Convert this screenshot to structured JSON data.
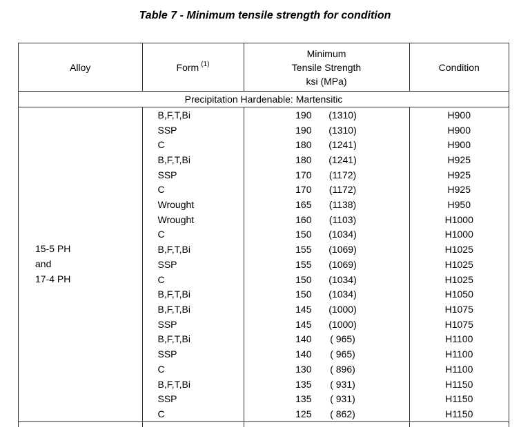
{
  "title": "Table 7 - Minimum tensile strength for condition",
  "table": {
    "headers": {
      "alloy": "Alloy",
      "form": "Form",
      "form_footnote": "(1)",
      "strength_lines": [
        "Minimum",
        "Tensile Strength",
        "ksi (MPa)"
      ],
      "condition": "Condition"
    },
    "section_label": "Precipitation Hardenable: Martensitic",
    "alloy_group": {
      "lines": [
        "15-5 PH",
        "and",
        "17-4 PH"
      ]
    },
    "rows": [
      {
        "form": "B,F,T,Bi",
        "ksi": "190",
        "mpa": "(1310)",
        "condition": "H900"
      },
      {
        "form": "SSP",
        "ksi": "190",
        "mpa": "(1310)",
        "condition": "H900"
      },
      {
        "form": "C",
        "ksi": "180",
        "mpa": "(1241)",
        "condition": "H900"
      },
      {
        "form": "B,F,T,Bi",
        "ksi": "180",
        "mpa": "(1241)",
        "condition": "H925"
      },
      {
        "form": "SSP",
        "ksi": "170",
        "mpa": "(1172)",
        "condition": "H925"
      },
      {
        "form": "C",
        "ksi": "170",
        "mpa": "(1172)",
        "condition": "H925"
      },
      {
        "form": "Wrought",
        "ksi": "165",
        "mpa": "(1138)",
        "condition": "H950"
      },
      {
        "form": "Wrought",
        "ksi": "160",
        "mpa": "(1103)",
        "condition": "H1000"
      },
      {
        "form": "C",
        "ksi": "150",
        "mpa": "(1034)",
        "condition": "H1000"
      },
      {
        "form": "B,F,T,Bi",
        "ksi": "155",
        "mpa": "(1069)",
        "condition": "H1025"
      },
      {
        "form": "SSP",
        "ksi": "155",
        "mpa": "(1069)",
        "condition": "H1025"
      },
      {
        "form": "C",
        "ksi": "150",
        "mpa": "(1034)",
        "condition": "H1025"
      },
      {
        "form": "B,F,T,Bi",
        "ksi": "150",
        "mpa": "(1034)",
        "condition": "H1050"
      },
      {
        "form": "B,F,T,Bi",
        "ksi": "145",
        "mpa": "(1000)",
        "condition": "H1075"
      },
      {
        "form": "SSP",
        "ksi": "145",
        "mpa": "(1000)",
        "condition": "H1075"
      },
      {
        "form": "B,F,T,Bi",
        "ksi": "140",
        "mpa": "( 965)",
        "condition": "H1100"
      },
      {
        "form": "SSP",
        "ksi": "140",
        "mpa": "( 965)",
        "condition": "H1100"
      },
      {
        "form": "C",
        "ksi": "130",
        "mpa": "( 896)",
        "condition": "H1100"
      },
      {
        "form": "B,F,T,Bi",
        "ksi": "135",
        "mpa": "( 931)",
        "condition": "H1150"
      },
      {
        "form": "SSP",
        "ksi": "135",
        "mpa": "( 931)",
        "condition": "H1150"
      },
      {
        "form": "C",
        "ksi": "125",
        "mpa": "( 862)",
        "condition": "H1150"
      }
    ],
    "colors": {
      "text": "#000000",
      "border": "#2e2e2e",
      "background": "#ffffff"
    }
  }
}
